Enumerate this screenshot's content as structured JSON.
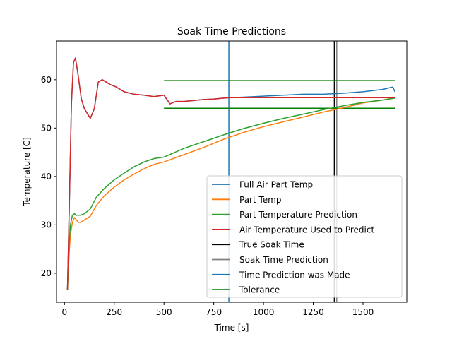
{
  "chart_data": {
    "type": "line",
    "title": "Soak Time Predictions",
    "xlabel": "Time [s]",
    "ylabel": "Temperature [C]",
    "xlim": [
      -40,
      1720
    ],
    "ylim": [
      14,
      68
    ],
    "xticks": [
      0,
      250,
      500,
      750,
      1000,
      1250,
      1500
    ],
    "yticks": [
      20,
      30,
      40,
      50,
      60
    ],
    "grid": false,
    "legend_position": "lower-right",
    "series": [
      {
        "name": "Full Air Part Temp",
        "color": "#1f77b4",
        "x": [
          15,
          25,
          35,
          45,
          55,
          65,
          75,
          85,
          100,
          115,
          130,
          150,
          170,
          190,
          210,
          230,
          260,
          300,
          350,
          400,
          450,
          500,
          530,
          560,
          600,
          650,
          700,
          750,
          800,
          830,
          900,
          1000,
          1100,
          1200,
          1300,
          1400,
          1500,
          1600,
          1650,
          1660
        ],
        "y": [
          16.5,
          35,
          55,
          63.5,
          64.5,
          62,
          59,
          56,
          54,
          53,
          52,
          54,
          59.5,
          60,
          59.5,
          59,
          58.5,
          57.5,
          57,
          56.8,
          56.5,
          56.8,
          55,
          55.5,
          55.5,
          55.7,
          55.9,
          56,
          56.2,
          56.3,
          56.4,
          56.6,
          56.8,
          57,
          57,
          57.2,
          57.5,
          58,
          58.5,
          57.5
        ]
      },
      {
        "name": "Part Temp",
        "color": "#ff7f0e",
        "x": [
          15,
          20,
          25,
          30,
          40,
          50,
          60,
          70,
          80,
          100,
          130,
          160,
          200,
          250,
          300,
          350,
          400,
          450,
          500,
          600,
          700,
          800,
          900,
          1000,
          1100,
          1200,
          1300,
          1400,
          1500,
          1600,
          1660
        ],
        "y": [
          16.5,
          21,
          25,
          28,
          30.5,
          31.5,
          31,
          30.5,
          30.5,
          31,
          31.8,
          34,
          36,
          37.8,
          39.3,
          40.5,
          41.6,
          42.5,
          43,
          44.5,
          46,
          47.7,
          49.1,
          50.3,
          51.3,
          52.3,
          53.3,
          54.2,
          55.2,
          55.8,
          56.3
        ]
      },
      {
        "name": "Part Temperature Prediction",
        "color": "#2ca02c",
        "x": [
          15,
          20,
          25,
          30,
          40,
          50,
          60,
          80,
          100,
          130,
          160,
          200,
          250,
          300,
          350,
          400,
          450,
          500,
          600,
          700,
          800,
          900,
          1000,
          1100,
          1200,
          1300,
          1400,
          1500,
          1600,
          1660
        ],
        "y": [
          16.5,
          22,
          27,
          30,
          32,
          32.3,
          32,
          32,
          32.3,
          33.3,
          35.7,
          37.5,
          39.3,
          40.7,
          42,
          43,
          43.7,
          44,
          45.8,
          47.2,
          48.6,
          49.9,
          51,
          52,
          52.9,
          53.8,
          54.6,
          55.3,
          55.8,
          56.2
        ]
      },
      {
        "name": "Air Temperature Used to Predict",
        "color": "#d62728",
        "x": [
          15,
          25,
          35,
          45,
          55,
          65,
          75,
          85,
          100,
          115,
          130,
          150,
          170,
          190,
          210,
          230,
          260,
          300,
          350,
          400,
          450,
          500,
          530,
          560,
          600,
          650,
          700,
          750,
          800,
          830,
          900,
          1000,
          1100,
          1200,
          1300,
          1400,
          1500,
          1600,
          1660
        ],
        "y": [
          16.5,
          35,
          55,
          63.5,
          64.5,
          62,
          59,
          56,
          54,
          53,
          52,
          54,
          59.5,
          60,
          59.5,
          59,
          58.5,
          57.5,
          57,
          56.8,
          56.5,
          56.8,
          55,
          55.5,
          55.5,
          55.7,
          55.9,
          56,
          56.2,
          56.3,
          56.3,
          56.3,
          56.3,
          56.3,
          56.3,
          56.3,
          56.3,
          56.3,
          56.3
        ]
      }
    ],
    "vertical_lines": [
      {
        "name": "True Soak Time",
        "color": "#000000",
        "x": 1356
      },
      {
        "name": "Soak Time Prediction",
        "color": "#808080",
        "x": 1368
      },
      {
        "name": "Time Prediction was Made",
        "color": "#1f77b4",
        "x": 826
      }
    ],
    "tolerance": {
      "name": "Tolerance",
      "color": "#008000",
      "x_range": [
        500,
        1660
      ],
      "upper": 59.8,
      "lower": 54.1
    }
  }
}
